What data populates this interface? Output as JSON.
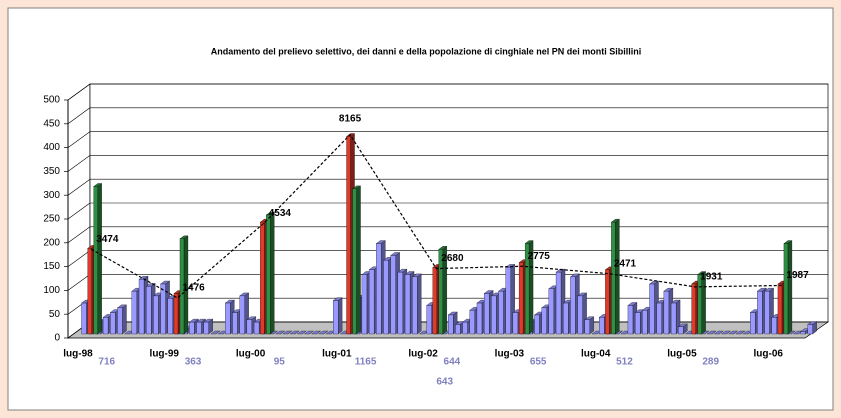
{
  "chart_data": [
    {
      "type": "bar",
      "title": "Andamento del prelievo selettivo, dei danni e della popolazione di cinghiale nel PN dei monti Sibillini",
      "categories": [
        "lug-98",
        null,
        null,
        null,
        null,
        null,
        null,
        null,
        null,
        null,
        null,
        null,
        "lug-99",
        null,
        null,
        null,
        null,
        null,
        null,
        null,
        null,
        null,
        null,
        null,
        "lug-00",
        null,
        null,
        null,
        null,
        null,
        null,
        null,
        null,
        null,
        null,
        null,
        "lug-01",
        null,
        null,
        null,
        null,
        null,
        null,
        null,
        null,
        null,
        null,
        null,
        "lug-02",
        null,
        null,
        null,
        null,
        null,
        null,
        null,
        null,
        null,
        null,
        null,
        "lug-03",
        null,
        null,
        null,
        null,
        null,
        null,
        null,
        null,
        null,
        null,
        null,
        "lug-04",
        null,
        null,
        null,
        null,
        null,
        null,
        null,
        null,
        null,
        null,
        null,
        "lug-05",
        null,
        null,
        null,
        null,
        null,
        null,
        null,
        null,
        null,
        null,
        null,
        "lug-06",
        null,
        null,
        null,
        null,
        null
      ],
      "series": [
        {
          "color": "#9999ff",
          "values": [
            65,
            0,
            25,
            35,
            45,
            55,
            0,
            90,
            115,
            100,
            80,
            105,
            75,
            0,
            10,
            25,
            25,
            25,
            0,
            0,
            65,
            45,
            80,
            30,
            25,
            0,
            0,
            0,
            0,
            0,
            0,
            0,
            0,
            0,
            0,
            70,
            0,
            0,
            75,
            125,
            135,
            190,
            155,
            165,
            130,
            125,
            120,
            0,
            60,
            0,
            0,
            40,
            20,
            25,
            50,
            65,
            85,
            80,
            90,
            140,
            45,
            0,
            25,
            40,
            55,
            95,
            130,
            65,
            120,
            80,
            30,
            0,
            35,
            0,
            0,
            0,
            60,
            45,
            50,
            105,
            65,
            90,
            65,
            15,
            0,
            0,
            0,
            0,
            0,
            0,
            0,
            0,
            0,
            45,
            90,
            90,
            35,
            0,
            0,
            0,
            5,
            20
          ]
        }
      ],
      "ylim": [
        0,
        500
      ],
      "yticks": [
        0,
        50,
        100,
        150,
        200,
        250,
        300,
        350,
        400,
        450,
        500
      ],
      "grid": true
    },
    {
      "type": "bar",
      "categories": [
        null,
        null,
        null,
        null,
        null,
        null,
        null,
        null,
        null
      ],
      "series": [
        {
          "color": "#e03a2a",
          "values": [
            180,
            85,
            235,
            415,
            140,
            150,
            135,
            105,
            105
          ]
        },
        {
          "color": "#2f8f44",
          "values": [
            310,
            200,
            250,
            305,
            178,
            190,
            235,
            125,
            190
          ]
        },
        {
          "type": "line",
          "axis": "y2",
          "color": "#000000",
          "values": [
            3474,
            1476,
            4534,
            8165,
            2680,
            2775,
            2471,
            1931,
            1987
          ]
        }
      ],
      "ylim": [
        0,
        500
      ],
      "y2lim": [
        0,
        9750
      ],
      "annotations": [
        716,
        363,
        95,
        1165,
        644,
        643,
        655,
        512,
        289
      ]
    }
  ]
}
